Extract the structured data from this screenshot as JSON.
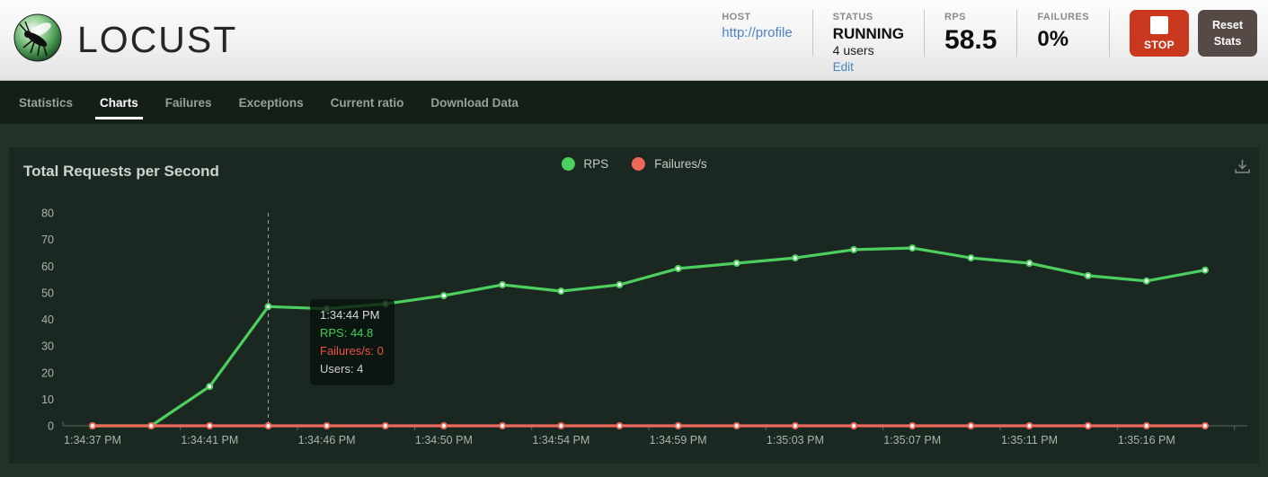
{
  "header": {
    "brand": "LOCUST",
    "host": {
      "label": "HOST",
      "value": "http://profile"
    },
    "status": {
      "label": "STATUS",
      "value": "RUNNING",
      "users": "4 users",
      "edit": "Edit"
    },
    "rps": {
      "label": "RPS",
      "value": "58.5"
    },
    "failures": {
      "label": "FAILURES",
      "value": "0%"
    },
    "stop_button": "STOP",
    "reset_button": "Reset Stats"
  },
  "nav": {
    "items": [
      {
        "label": "Statistics",
        "active": false
      },
      {
        "label": "Charts",
        "active": true
      },
      {
        "label": "Failures",
        "active": false
      },
      {
        "label": "Exceptions",
        "active": false
      },
      {
        "label": "Current ratio",
        "active": false
      },
      {
        "label": "Download Data",
        "active": false
      }
    ]
  },
  "chart": {
    "title": "Total Requests per Second",
    "legend": [
      {
        "label": "RPS",
        "color": "#4ccf5e"
      },
      {
        "label": "Failures/s",
        "color": "#ed6a5a"
      }
    ]
  },
  "tooltip": {
    "time": "1:34:44 PM",
    "rps": "RPS: 44.8",
    "failures": "Failures/s: 0",
    "users": "Users: 4"
  },
  "chart_data": {
    "type": "line",
    "title": "Total Requests per Second",
    "x": [
      "1:34:37 PM",
      "1:34:39 PM",
      "1:34:41 PM",
      "1:34:44 PM",
      "1:34:46 PM",
      "1:34:48 PM",
      "1:34:50 PM",
      "1:34:52 PM",
      "1:34:54 PM",
      "1:34:57 PM",
      "1:34:59 PM",
      "1:35:01 PM",
      "1:35:03 PM",
      "1:35:05 PM",
      "1:35:07 PM",
      "1:35:09 PM",
      "1:35:11 PM",
      "1:35:14 PM",
      "1:35:16 PM",
      "1:35:18 PM"
    ],
    "series": [
      {
        "name": "RPS",
        "color": "#4ccf5e",
        "values": [
          0,
          0,
          14.8,
          44.8,
          44.0,
          45.8,
          48.9,
          53.0,
          50.6,
          53.0,
          59.1,
          61.1,
          63.1,
          66.2,
          66.8,
          63.1,
          61.1,
          56.4,
          54.4,
          58.5
        ]
      },
      {
        "name": "Failures/s",
        "color": "#ed6a5a",
        "values": [
          0,
          0,
          0,
          0,
          0,
          0,
          0,
          0,
          0,
          0,
          0,
          0,
          0,
          0,
          0,
          0,
          0,
          0,
          0,
          0
        ]
      }
    ],
    "x_tick_indices": [
      0,
      2,
      4,
      6,
      8,
      10,
      12,
      14,
      16,
      18
    ],
    "y_ticks": [
      0,
      10,
      20,
      30,
      40,
      50,
      60,
      70,
      80
    ],
    "ylim": [
      0,
      80
    ],
    "tooltip_index": 3,
    "tooltip_values": {
      "time": "1:34:44 PM",
      "rps": 44.8,
      "failures": 0,
      "users": 4
    },
    "legend_position": "top-center",
    "grid": false
  }
}
